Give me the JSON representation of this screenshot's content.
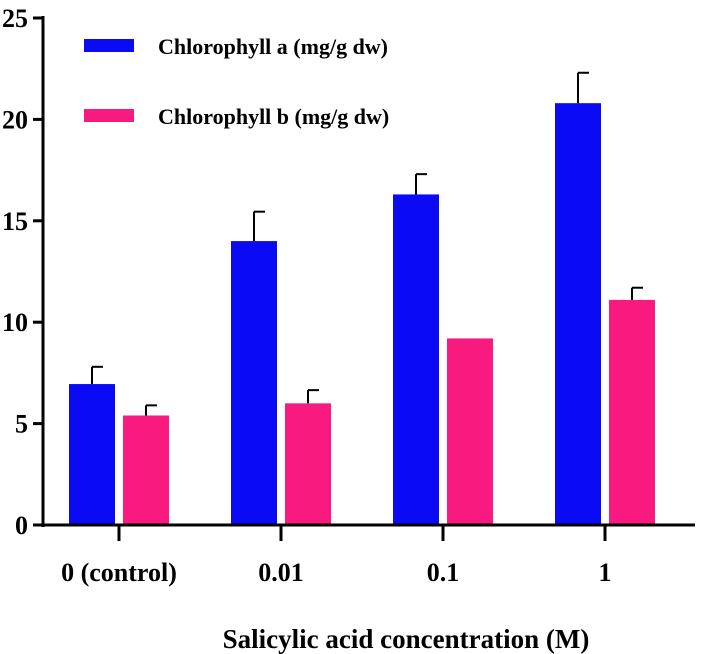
{
  "chart_data": {
    "type": "bar",
    "title": "",
    "xlabel": "Salicylic acid concentration (M)",
    "ylabel": "",
    "ylim": [
      0,
      25
    ],
    "yticks": [
      "0",
      "5",
      "10",
      "15",
      "20",
      "25"
    ],
    "categories": [
      "0 (control)",
      "0.01",
      "0.1",
      "1"
    ],
    "legend_position": "top-left",
    "series": [
      {
        "name": "Chlorophyll a (mg/g dw)",
        "color": "#0a0af5",
        "values": [
          6.95,
          14.0,
          16.3,
          20.8
        ],
        "errors": [
          0.85,
          1.45,
          1.0,
          1.5
        ]
      },
      {
        "name": "Chlorophyll b (mg/g dw)",
        "color": "#f91a80",
        "values": [
          5.4,
          6.0,
          9.2,
          11.1
        ],
        "errors": [
          0.5,
          0.65,
          0.0,
          0.6
        ]
      }
    ]
  }
}
